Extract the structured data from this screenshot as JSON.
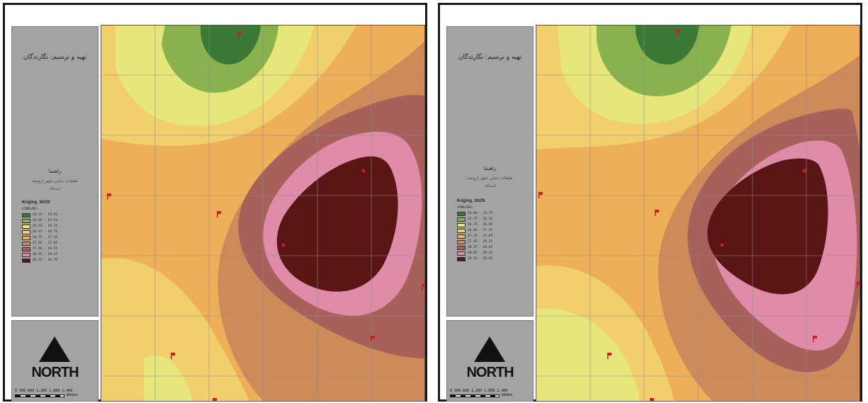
{
  "panels": [
    {
      "id": "left",
      "credit": "تهیه و ترسیم: نگارندگان",
      "legend_title": "راهنما",
      "legend_subtitle": "طبقات دمایی شهر ارومیه",
      "legend_note": "ایستگاه",
      "layer_name": "Kriging_Str23",
      "field_label": "<VALUE>",
      "classes": [
        {
          "label": "24.33 - 24.95",
          "color": "#3a7a36"
        },
        {
          "label": "24.95 - 25.55",
          "color": "#89b24e"
        },
        {
          "label": "25.55 - 26.15",
          "color": "#e6e67a"
        },
        {
          "label": "26.15 - 26.75",
          "color": "#f1cf6d"
        },
        {
          "label": "26.75 - 27.35",
          "color": "#eeaf58"
        },
        {
          "label": "27.35 - 27.95",
          "color": "#cf8a5a"
        },
        {
          "label": "27.95 - 28.55",
          "color": "#a8605a"
        },
        {
          "label": "28.55 - 29.15",
          "color": "#e08ba8"
        },
        {
          "label": "29.15 - 29.75",
          "color": "#5a1515"
        }
      ],
      "north_label": "NORTH",
      "scale_numbers": "0  300 600    1,200    1,800    2,400",
      "scale_unit": "Meters"
    },
    {
      "id": "right",
      "credit": "تهیه و ترسیم: نگارندگان",
      "legend_title": "راهنما",
      "legend_subtitle": "طبقات دمایی شهر ارومیه",
      "legend_note": "ایستگاه",
      "layer_name": "Kriging_Str28",
      "field_label": "<VALUE>",
      "classes": [
        {
          "label": "25.03 - 25.75",
          "color": "#3a7a36"
        },
        {
          "label": "25.75 - 26.35",
          "color": "#89b24e"
        },
        {
          "label": "26.35 - 26.85",
          "color": "#e6e67a"
        },
        {
          "label": "26.85 - 27.35",
          "color": "#f1cf6d"
        },
        {
          "label": "27.35 - 27.85",
          "color": "#eeaf58"
        },
        {
          "label": "27.85 - 28.35",
          "color": "#cf8a5a"
        },
        {
          "label": "28.35 - 28.85",
          "color": "#a8605a"
        },
        {
          "label": "28.85 - 29.35",
          "color": "#e08ba8"
        },
        {
          "label": "29.35 - 29.84",
          "color": "#5a1515"
        }
      ],
      "north_label": "NORTH",
      "scale_numbers": "0  300 600    1,200    1,800    2,400",
      "scale_unit": "Meters"
    }
  ]
}
